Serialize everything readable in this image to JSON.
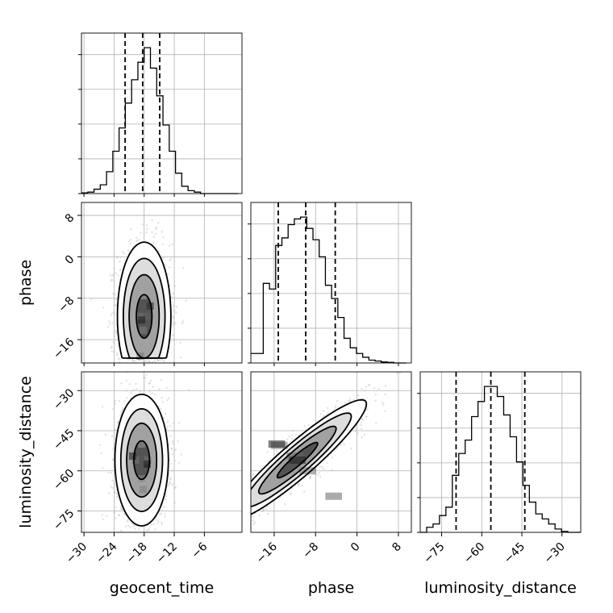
{
  "chart_data": {
    "type": "corner",
    "parameters": [
      "geocent_time",
      "phase",
      "luminosity_distance"
    ],
    "ranges": {
      "geocent_time": [
        -30.5,
        1.5
      ],
      "phase": [
        -20.5,
        10.5
      ],
      "luminosity_distance": [
        -83,
        -23
      ]
    },
    "ticks": {
      "geocent_time": [
        -30,
        -24,
        -18,
        -12,
        -6
      ],
      "phase": [
        -16,
        -8,
        0,
        8
      ],
      "luminosity_distance": [
        -75,
        -60,
        -45,
        -30
      ]
    },
    "tick_labels": {
      "geocent_time": [
        "−30",
        "−24",
        "−18",
        "−12",
        "−6"
      ],
      "phase": [
        "−16",
        "−8",
        "0",
        "8"
      ],
      "luminosity_distance": [
        "−75",
        "−60",
        "−45",
        "−30"
      ]
    },
    "grid": true,
    "histograms": [
      {
        "param": "geocent_time",
        "bin_edges": [
          -30.5,
          -29.25,
          -28.0,
          -26.75,
          -25.5,
          -24.25,
          -23.0,
          -21.75,
          -20.5,
          -19.25,
          -18.0,
          -16.75,
          -15.5,
          -14.25,
          -13.0,
          -11.75,
          -10.5,
          -9.25,
          -8.0,
          -6.75,
          -5.5,
          -4.25,
          -3.0,
          -1.75,
          -0.5,
          0.75
        ],
        "counts": [
          0.005,
          0.01,
          0.03,
          0.06,
          0.15,
          0.29,
          0.45,
          0.62,
          0.78,
          0.9,
          1.0,
          0.86,
          0.67,
          0.47,
          0.29,
          0.14,
          0.05,
          0.02,
          0.01,
          0.0,
          0.0,
          0.0,
          0.0,
          0.0,
          0.0
        ],
        "quantiles": [
          -21.8,
          -18.3,
          -14.9
        ]
      },
      {
        "param": "phase",
        "bin_edges": [
          -20.5,
          -19.3,
          -18.1,
          -16.9,
          -15.7,
          -14.5,
          -13.3,
          -12.1,
          -10.9,
          -9.7,
          -8.5,
          -7.3,
          -6.1,
          -4.9,
          -3.7,
          -2.5,
          -1.3,
          -0.1,
          1.1,
          2.3,
          3.5,
          4.7,
          5.9,
          7.1,
          8.3,
          9.5
        ],
        "counts": [
          0.05,
          0.05,
          0.42,
          0.39,
          0.62,
          0.66,
          0.73,
          0.76,
          0.77,
          0.71,
          0.65,
          0.56,
          0.41,
          0.34,
          0.24,
          0.13,
          0.08,
          0.05,
          0.03,
          0.015,
          0.01,
          0.005,
          0.003,
          0.0,
          0.0
        ],
        "quantiles": [
          -15.2,
          -9.9,
          -4.2
        ]
      },
      {
        "param": "luminosity_distance",
        "bin_edges": [
          -83,
          -80.6,
          -78.2,
          -75.8,
          -73.4,
          -71.0,
          -68.6,
          -66.2,
          -63.8,
          -61.4,
          -59.0,
          -56.6,
          -54.2,
          -51.8,
          -49.4,
          -47.0,
          -44.6,
          -42.2,
          -39.8,
          -37.4,
          -35.0,
          -32.6,
          -30.2,
          -27.8,
          -25.4,
          -23.0
        ],
        "counts": [
          0.0,
          0.03,
          0.05,
          0.1,
          0.15,
          0.34,
          0.47,
          0.55,
          0.69,
          0.78,
          0.87,
          0.87,
          0.81,
          0.7,
          0.57,
          0.42,
          0.28,
          0.18,
          0.11,
          0.08,
          0.05,
          0.02,
          0.005,
          0.0,
          0.0
        ],
        "quantiles": [
          -69.6,
          -56.6,
          -43.9
        ]
      }
    ],
    "scatter_panels": [
      {
        "x": "geocent_time",
        "y": "phase",
        "center": [
          -18.0,
          -11.5
        ],
        "sigma": [
          2.6,
          7.0
        ],
        "rho": 0.0,
        "clip_y": [
          -20.5,
          10.5
        ],
        "cells": [
          {
            "x": -18.9,
            "y": -11.5,
            "v": 0.55
          },
          {
            "x": -17.6,
            "y": -11.5,
            "v": 0.6
          },
          {
            "x": -18.2,
            "y": -14.2,
            "v": 0.5
          },
          {
            "x": -18.2,
            "y": -7.5,
            "v": 0.35
          },
          {
            "x": -16.8,
            "y": -9.5,
            "v": 0.85
          },
          {
            "x": -18.5,
            "y": -12.2,
            "v": 0.9
          },
          {
            "x": -18.8,
            "y": -19.2,
            "v": 0.55
          }
        ]
      },
      {
        "x": "geocent_time",
        "y": "luminosity_distance",
        "center": [
          -18.5,
          -56.0
        ],
        "sigma": [
          2.6,
          12.0
        ],
        "rho": 0.0,
        "clip_y": [
          -83,
          -23
        ],
        "cells": [
          {
            "x": -19.7,
            "y": -56,
            "v": 0.55
          },
          {
            "x": -17.3,
            "y": -56,
            "v": 0.55
          },
          {
            "x": -18.5,
            "y": -50,
            "v": 0.4
          },
          {
            "x": -18.5,
            "y": -63,
            "v": 0.45
          },
          {
            "x": -20.3,
            "y": -54.5,
            "v": 0.9
          },
          {
            "x": -17.4,
            "y": -57.5,
            "v": 0.9
          },
          {
            "x": -18.2,
            "y": -67,
            "v": 0.5
          }
        ]
      },
      {
        "x": "phase",
        "y": "luminosity_distance",
        "center": [
          -11.5,
          -56.0
        ],
        "sigma": [
          6.5,
          11.0
        ],
        "rho": 0.93,
        "clip_y": [
          -83,
          -23
        ],
        "cells": [
          {
            "x": -15.0,
            "y": -50.5,
            "v": 0.55
          },
          {
            "x": -12.0,
            "y": -54.5,
            "v": 0.6
          },
          {
            "x": -9.5,
            "y": -60.0,
            "v": 0.55
          },
          {
            "x": -15.5,
            "y": -50.0,
            "v": 0.9
          },
          {
            "x": -11.5,
            "y": -56.0,
            "v": 0.88
          },
          {
            "x": -4.5,
            "y": -69.5,
            "v": 0.6
          }
        ]
      }
    ]
  }
}
